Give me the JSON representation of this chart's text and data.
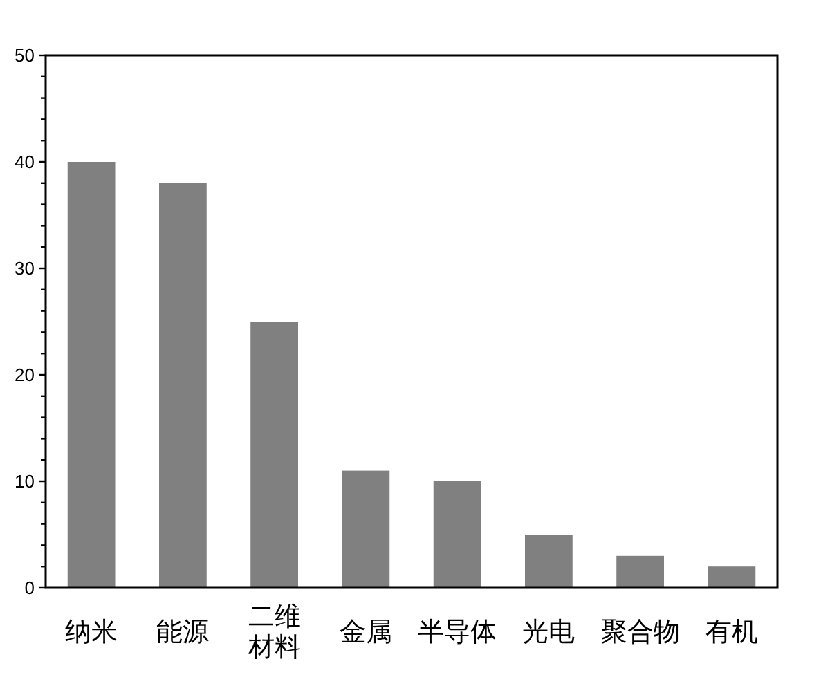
{
  "chart_data": {
    "type": "bar",
    "categories": [
      "纳米",
      "能源",
      "二维材料",
      "金属",
      "半导体",
      "光电",
      "聚合物",
      "有机"
    ],
    "values": [
      40,
      38,
      25,
      11,
      10,
      5,
      3,
      2
    ],
    "color": "#808080",
    "ylim": [
      0,
      50
    ],
    "yticks": [
      0,
      {
        "value": 2,
        "label": null
      },
      {
        "value": 4,
        "label": null
      },
      {
        "value": 6,
        "label": null
      },
      {
        "value": 8,
        "label": null
      },
      10,
      {
        "value": 12,
        "label": null
      },
      {
        "value": 14,
        "label": null
      },
      {
        "value": 16,
        "label": null
      },
      {
        "value": 18,
        "label": null
      },
      20,
      {
        "value": 22,
        "label": null
      },
      {
        "value": 24,
        "label": null
      },
      {
        "value": 26,
        "label": null
      },
      {
        "value": 28,
        "label": null
      },
      30,
      {
        "value": 32,
        "label": null
      },
      {
        "value": 34,
        "label": null
      },
      {
        "value": 36,
        "label": null
      },
      {
        "value": 38,
        "label": null
      },
      40,
      {
        "value": 42,
        "label": null
      },
      {
        "value": 44,
        "label": null
      },
      {
        "value": 46,
        "label": null
      },
      {
        "value": 48,
        "label": null
      },
      50
    ],
    "grid": false
  }
}
